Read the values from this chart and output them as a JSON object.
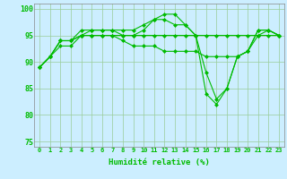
{
  "xlabel": "Humidité relative (%)",
  "x": [
    0,
    1,
    2,
    3,
    4,
    5,
    6,
    7,
    8,
    9,
    10,
    11,
    12,
    13,
    14,
    15,
    16,
    17,
    18,
    19,
    20,
    21,
    22,
    23
  ],
  "series": [
    [
      89,
      91,
      94,
      94,
      95,
      96,
      96,
      96,
      96,
      96,
      97,
      98,
      99,
      99,
      97,
      95,
      88,
      83,
      85,
      91,
      92,
      96,
      96,
      95
    ],
    [
      89,
      91,
      93,
      93,
      95,
      95,
      95,
      95,
      94,
      93,
      93,
      93,
      92,
      92,
      92,
      92,
      91,
      91,
      91,
      91,
      92,
      95,
      96,
      95
    ],
    [
      89,
      91,
      94,
      94,
      96,
      96,
      96,
      96,
      95,
      95,
      96,
      98,
      98,
      97,
      97,
      95,
      84,
      82,
      85,
      91,
      92,
      96,
      96,
      95
    ],
    [
      89,
      91,
      94,
      94,
      95,
      95,
      95,
      95,
      95,
      95,
      95,
      95,
      95,
      95,
      95,
      95,
      95,
      95,
      95,
      95,
      95,
      95,
      95,
      95
    ]
  ],
  "line_color": "#00bb00",
  "marker": "D",
  "markersize": 2.5,
  "bg_color": "#cceeff",
  "grid_color": "#99cc99",
  "ylim": [
    74,
    101
  ],
  "yticks": [
    75,
    80,
    85,
    90,
    95,
    100
  ],
  "figsize": [
    3.2,
    2.0
  ],
  "dpi": 100
}
